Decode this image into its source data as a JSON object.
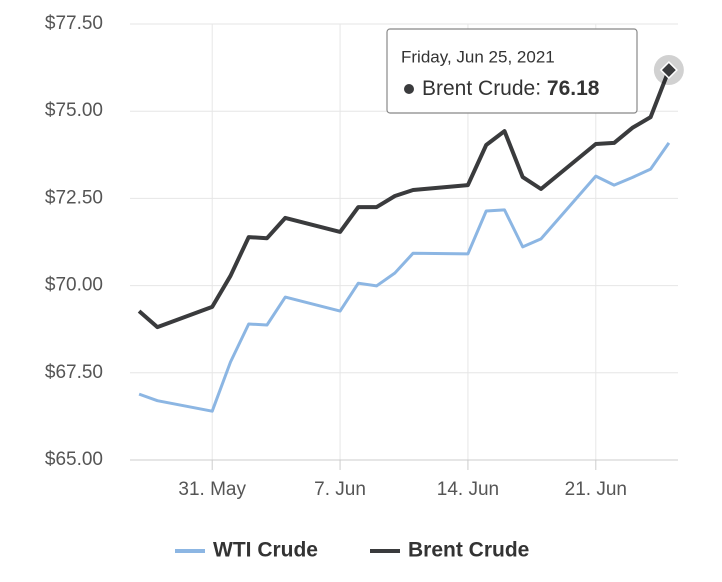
{
  "chart_data": {
    "type": "line",
    "x": [
      "2021-05-27",
      "2021-05-28",
      "2021-05-31",
      "2021-06-01",
      "2021-06-02",
      "2021-06-03",
      "2021-06-04",
      "2021-06-07",
      "2021-06-08",
      "2021-06-09",
      "2021-06-10",
      "2021-06-11",
      "2021-06-14",
      "2021-06-15",
      "2021-06-16",
      "2021-06-17",
      "2021-06-18",
      "2021-06-21",
      "2021-06-22",
      "2021-06-23",
      "2021-06-24",
      "2021-06-25"
    ],
    "series": [
      {
        "name": "WTI Crude",
        "color": "#8cb6e3",
        "values": [
          66.89,
          66.7,
          66.4,
          67.81,
          68.9,
          68.87,
          69.67,
          69.27,
          70.07,
          69.99,
          70.36,
          70.93,
          70.91,
          72.14,
          72.17,
          71.11,
          71.34,
          73.14,
          72.88,
          73.1,
          73.34,
          74.09
        ]
      },
      {
        "name": "Brent Crude",
        "color": "#3a3b3d",
        "values": [
          69.27,
          68.81,
          69.39,
          70.28,
          71.39,
          71.36,
          71.94,
          71.54,
          72.25,
          72.25,
          72.57,
          72.74,
          72.88,
          74.03,
          74.43,
          73.11,
          72.77,
          74.06,
          74.09,
          74.52,
          74.83,
          76.18
        ]
      }
    ],
    "xlim": [
      "2021-05-26T12:00:00Z",
      "2021-06-25T12:00:00Z"
    ],
    "xticks": [
      {
        "value": "2021-05-31",
        "label": "31. May"
      },
      {
        "value": "2021-06-07",
        "label": "7. Jun"
      },
      {
        "value": "2021-06-14",
        "label": "14. Jun"
      },
      {
        "value": "2021-06-21",
        "label": "21. Jun"
      }
    ],
    "ylim": [
      65,
      77.5
    ],
    "yticks": [
      {
        "value": 65,
        "label": "$65.00"
      },
      {
        "value": 67.5,
        "label": "$67.50"
      },
      {
        "value": 70,
        "label": "$70.00"
      },
      {
        "value": 72.5,
        "label": "$72.50"
      },
      {
        "value": 75,
        "label": "$75.00"
      },
      {
        "value": 77.5,
        "label": "$77.50"
      }
    ],
    "grid": true,
    "legend": "bottom",
    "tooltip": {
      "date": "Friday, Jun 25, 2021"
    }
  }
}
